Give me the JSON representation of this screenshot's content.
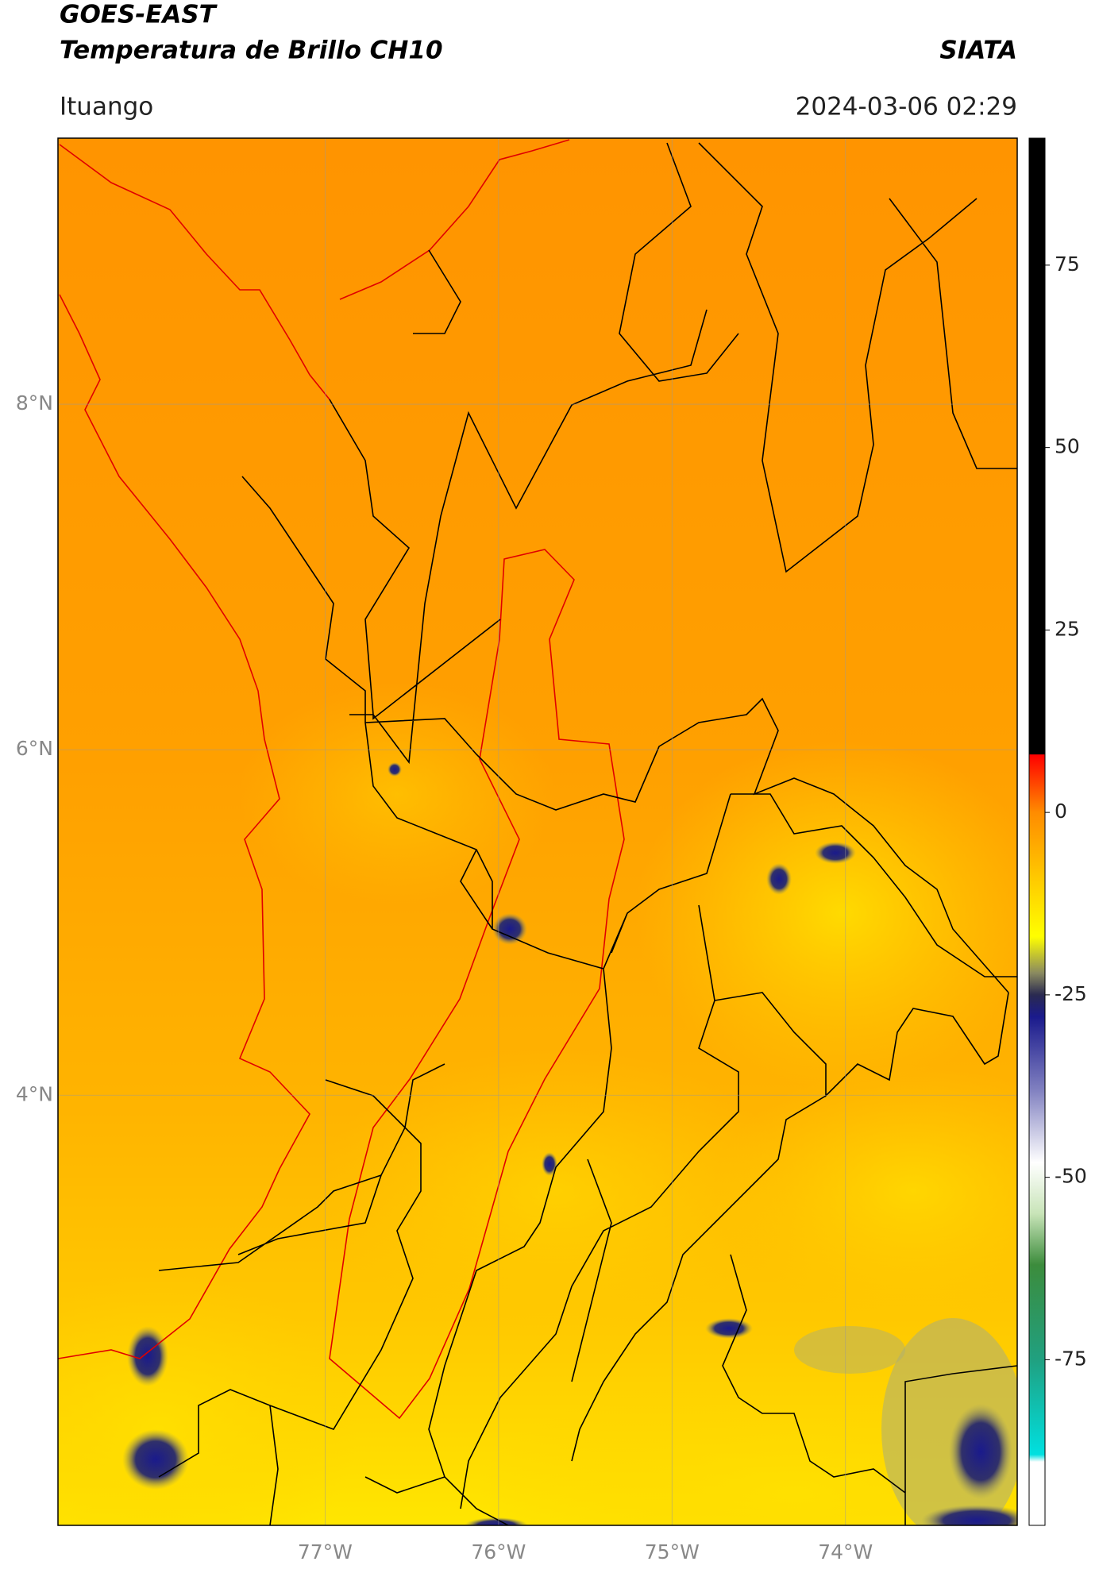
{
  "chart_data": {
    "type": "map",
    "title": "GOES-EAST",
    "subtitle": "Temperatura de Brillo CH10",
    "source": "SIATA",
    "region": "Ituango",
    "datetime": "2024-03-06 02:29",
    "xlim": [
      -78.54,
      -73.01
    ],
    "ylim": [
      1.51,
      9.54
    ],
    "xticks": [
      {
        "value": -77,
        "label": "77°W"
      },
      {
        "value": -76,
        "label": "76°W"
      },
      {
        "value": -75,
        "label": "75°W"
      },
      {
        "value": -74,
        "label": "74°W"
      }
    ],
    "yticks": [
      {
        "value": 8,
        "label": "8°N"
      },
      {
        "value": 6,
        "label": "6°N"
      },
      {
        "value": 4,
        "label": "4°N"
      }
    ],
    "grid": true,
    "colorbar": {
      "lim": [
        -97.7,
        92.4
      ],
      "ticks": [
        75,
        50,
        25,
        0,
        -25,
        -50,
        -75
      ],
      "colormap": [
        [
          92.4,
          "#000000"
        ],
        [
          8,
          "#000000"
        ],
        [
          7.9,
          "#ff0000"
        ],
        [
          0,
          "#ff8c00"
        ],
        [
          -10,
          "#ffd000"
        ],
        [
          -17,
          "#ffff00"
        ],
        [
          -22,
          "#8a8a60"
        ],
        [
          -25,
          "#2a2a50"
        ],
        [
          -28,
          "#1a1a8c"
        ],
        [
          -38,
          "#8080c0"
        ],
        [
          -48,
          "#ffffff"
        ],
        [
          -55,
          "#c8e4b8"
        ],
        [
          -62,
          "#3c8c3c"
        ],
        [
          -75,
          "#20a080"
        ],
        [
          -88,
          "#00e0e0"
        ],
        [
          -89,
          "#ffffff"
        ],
        [
          -97.7,
          "#ffffff"
        ]
      ]
    }
  }
}
